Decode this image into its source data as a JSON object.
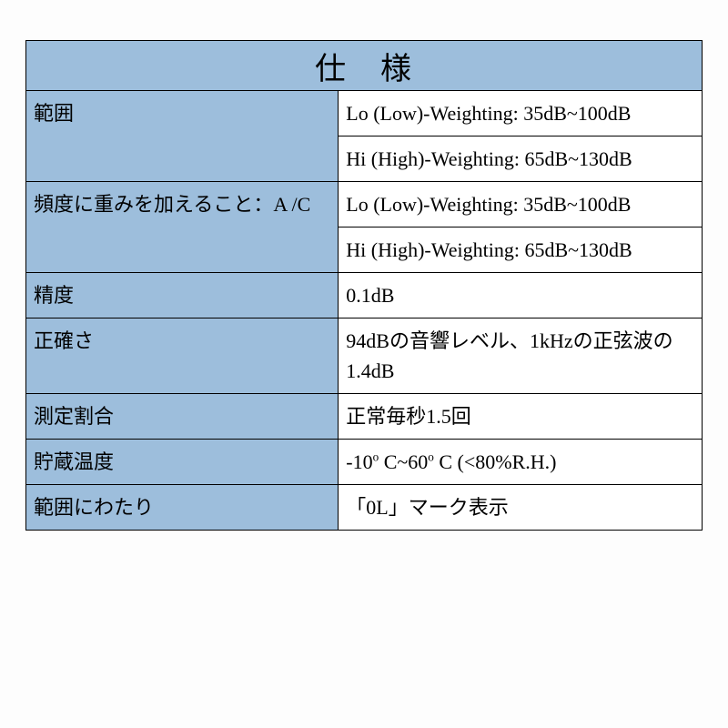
{
  "table": {
    "header": "仕　様",
    "col_widths_pct": [
      46.2,
      53.8
    ],
    "header_bg": "#9dbedc",
    "label_bg": "#9dbedc",
    "value_bg": "#ffffff",
    "border_color": "#000000",
    "title_fontsize": 34,
    "cell_fontsize": 22,
    "font_family": "Times New Roman / MS Mincho serif",
    "rows": [
      {
        "label": "範囲",
        "value": "Lo (Low)-Weighting: 35dB~100dB",
        "label_rowspan": 2
      },
      {
        "label": "",
        "value": "Hi (High)-Weighting: 65dB~130dB",
        "continued": true
      },
      {
        "label": "頻度に重みを加えること：A /C",
        "value": "Lo (Low)-Weighting: 35dB~100dB",
        "label_rowspan": 2
      },
      {
        "label": "",
        "value": "Hi (High)-Weighting: 65dB~130dB",
        "continued": true
      },
      {
        "label": "精度",
        "value": "0.1dB"
      },
      {
        "label": "正確さ",
        "value": "94dBの音響レベル、1kHzの正弦波の1.4dB"
      },
      {
        "label": "測定割合",
        "value": "正常毎秒1.5回"
      },
      {
        "label": "貯蔵温度",
        "value": "-10° C~60° C (<80%R.H.)",
        "value_html": "-10<sup>o</sup> C~60<sup>o</sup> C (&lt;80%R.H.)"
      },
      {
        "label": "範囲にわたり",
        "value": "「0L」マーク表示"
      }
    ]
  }
}
